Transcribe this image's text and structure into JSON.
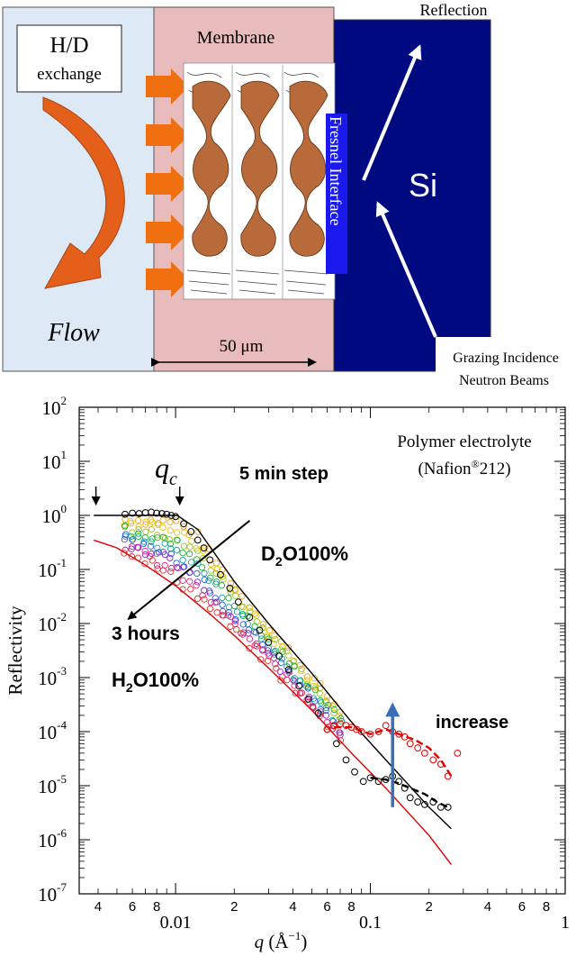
{
  "schematic": {
    "hd_line1": "H/D",
    "hd_line2": "exchange",
    "flow": "Flow",
    "membrane": "Membrane",
    "scale": "50  μm",
    "fresnel": "Fresnel Interface",
    "si": "Si",
    "reflection": "Reflection",
    "grazing1": "Grazing Incidence",
    "grazing2": "Neutron Beams",
    "colors": {
      "water": "#dde9f4",
      "membrane": "#e8bcbc",
      "si": "#000a80",
      "fresnel": "#1a1aee",
      "arrow": "#e4601a",
      "domain": "#b86a3a"
    }
  },
  "plot_text": {
    "title1": "Polymer electrolyte",
    "title2_pre": "(Nafion",
    "title2_sup": "®",
    "title2_post": "212)",
    "qc_q": "q",
    "qc_sub": "c",
    "step": "5 min step",
    "d2o_pre": "D",
    "d2o_sub": "2",
    "d2o_post": "O100%",
    "hours": "3 hours",
    "h2o_pre": "H",
    "h2o_sub": "2",
    "h2o_post": "O100%",
    "increase": "increase",
    "ylabel": "Reflectivity",
    "xlabel_q": "q",
    "xlabel_unit": " (Å",
    "xlabel_exp": "−1",
    "xlabel_close": ")"
  },
  "chart_data": {
    "type": "scatter",
    "xscale": "log",
    "yscale": "log",
    "xlim": [
      0.0032,
      1.0
    ],
    "ylim": [
      1e-07,
      100
    ],
    "y_tick_labels": [
      {
        "value": 100,
        "base": "10",
        "exp": "2"
      },
      {
        "value": 10,
        "base": "10",
        "exp": "1"
      },
      {
        "value": 1,
        "base": "10",
        "exp": "0"
      },
      {
        "value": 0.1,
        "base": "10",
        "exp": "-1"
      },
      {
        "value": 0.01,
        "base": "10",
        "exp": "-2"
      },
      {
        "value": 0.001,
        "base": "10",
        "exp": "-3"
      },
      {
        "value": 0.0001,
        "base": "10",
        "exp": "-4"
      },
      {
        "value": 1e-05,
        "base": "10",
        "exp": "-5"
      },
      {
        "value": 1e-06,
        "base": "10",
        "exp": "-6"
      },
      {
        "value": 1e-07,
        "base": "10",
        "exp": "-7"
      }
    ],
    "x_major_labels": [
      {
        "value": 0.01,
        "label": "0.01"
      },
      {
        "value": 0.1,
        "label": "0.1"
      },
      {
        "value": 1,
        "label": "1"
      }
    ],
    "x_minor_labels": [
      {
        "value": 0.004,
        "label": "4"
      },
      {
        "value": 0.006,
        "label": "6"
      },
      {
        "value": 0.008,
        "label": "8"
      },
      {
        "value": 0.02,
        "label": "2"
      },
      {
        "value": 0.04,
        "label": "4"
      },
      {
        "value": 0.06,
        "label": "6"
      },
      {
        "value": 0.08,
        "label": "8"
      },
      {
        "value": 0.2,
        "label": "2"
      },
      {
        "value": 0.4,
        "label": "4"
      },
      {
        "value": 0.6,
        "label": "6"
      },
      {
        "value": 0.8,
        "label": "8"
      }
    ],
    "series": [
      {
        "role": "D2O fit",
        "color": "#000000",
        "style": "solid",
        "x": [
          0.0038,
          0.0102,
          0.013,
          0.02,
          0.03,
          0.05,
          0.08,
          0.12,
          0.2,
          0.26
        ],
        "y": [
          1.0,
          1.0,
          0.55,
          0.06,
          0.01,
          0.0012,
          0.00015,
          3e-05,
          4e-06,
          1.6e-06
        ]
      },
      {
        "role": "H2O fit",
        "color": "#e00000",
        "style": "solid",
        "x": [
          0.0038,
          0.005,
          0.007,
          0.01,
          0.015,
          0.02,
          0.03,
          0.05,
          0.08,
          0.12,
          0.2,
          0.26
        ],
        "y": [
          0.35,
          0.25,
          0.12,
          0.05,
          0.015,
          0.006,
          0.0015,
          0.00025,
          4e-05,
          9e-06,
          1.2e-06,
          3.5e-07
        ]
      },
      {
        "role": "D2O data",
        "color": "#000000",
        "marker": "circle",
        "x": [
          0.0055,
          0.006,
          0.0065,
          0.007,
          0.0075,
          0.008,
          0.0085,
          0.009,
          0.0095,
          0.01,
          0.011,
          0.012,
          0.013,
          0.014,
          0.015,
          0.017,
          0.019,
          0.021,
          0.024,
          0.027,
          0.03,
          0.034,
          0.038,
          0.043,
          0.048,
          0.054,
          0.06,
          0.067,
          0.075,
          0.083,
          0.092,
          0.1,
          0.11,
          0.12,
          0.13,
          0.14,
          0.15,
          0.16,
          0.175,
          0.19,
          0.21,
          0.23,
          0.25
        ],
        "y": [
          1.05,
          1.1,
          1.08,
          1.12,
          1.15,
          1.1,
          1.08,
          1.05,
          1.0,
          0.95,
          0.7,
          0.5,
          0.35,
          0.25,
          0.15,
          0.08,
          0.045,
          0.025,
          0.013,
          0.0075,
          0.0045,
          0.0025,
          0.0014,
          0.0007,
          0.0004,
          0.00022,
          0.00011,
          6e-05,
          3e-05,
          1.8e-05,
          1.2e-05,
          1.4e-05,
          1.2e-05,
          1.3e-05,
          1.5e-05,
          1.2e-05,
          9e-06,
          6e-06,
          5e-06,
          4.5e-06,
          5e-06,
          4e-06,
          4e-06
        ]
      },
      {
        "role": "H2O data",
        "color": "#e00000",
        "marker": "circle",
        "x": [
          0.06,
          0.065,
          0.07,
          0.075,
          0.08,
          0.085,
          0.09,
          0.1,
          0.11,
          0.12,
          0.13,
          0.14,
          0.15,
          0.16,
          0.175,
          0.19,
          0.21,
          0.23,
          0.25,
          0.28
        ],
        "y": [
          0.00011,
          0.00013,
          0.00014,
          0.00013,
          0.00012,
          0.00011,
          0.0001,
          9e-05,
          0.0001,
          0.00013,
          0.0001,
          9e-05,
          8e-05,
          6e-05,
          5e-05,
          4e-05,
          3e-05,
          2.5e-05,
          1.5e-05,
          4e-05
        ]
      },
      {
        "role": "D2O dashed",
        "color": "#000000",
        "style": "dashed",
        "x": [
          0.1,
          0.12,
          0.14,
          0.16,
          0.19,
          0.22,
          0.25
        ],
        "y": [
          1.4e-05,
          1.3e-05,
          1.1e-05,
          9e-06,
          7e-06,
          5e-06,
          4e-06
        ]
      },
      {
        "role": "H2O dashed",
        "color": "#e00000",
        "style": "dashed",
        "x": [
          0.065,
          0.08,
          0.1,
          0.12,
          0.14,
          0.17,
          0.2,
          0.23,
          0.26
        ],
        "y": [
          0.00012,
          0.00012,
          9e-05,
          0.00011,
          9e-05,
          7e-05,
          5e-05,
          3e-05,
          1.5e-05
        ]
      }
    ],
    "intermediate_band": {
      "colors": [
        "#f0a020",
        "#e8c000",
        "#a0c020",
        "#20b030",
        "#10a0a0",
        "#2060e0",
        "#8030c0",
        "#e02080",
        "#e03030"
      ],
      "x_range": [
        0.0055,
        0.07
      ],
      "note": "time series between D2O and H2O curves"
    },
    "annotations": {
      "qc_arrow_x": 0.0105,
      "arrow_at_x": 0.0039,
      "time_arrow": {
        "from": [
          0.024,
          0.8
        ],
        "to": [
          0.0057,
          0.012
        ]
      },
      "increase_arrow": {
        "x": 0.13,
        "from_y": 4e-06,
        "to_y": 0.0003
      }
    }
  }
}
